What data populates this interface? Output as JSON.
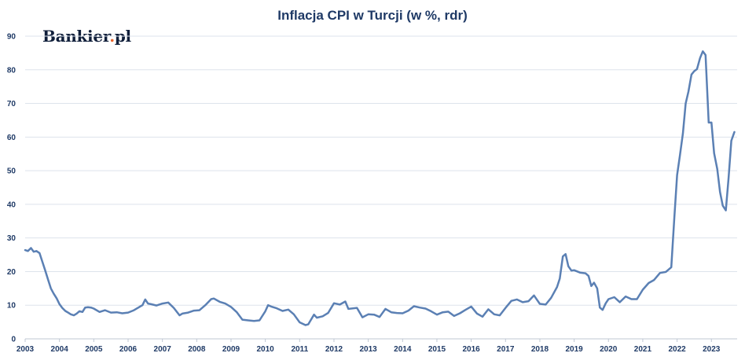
{
  "chart_data": {
    "type": "line",
    "title": "Inflacja CPI w Turcji (w %, rdr)",
    "xlabel": "",
    "ylabel": "",
    "xlim": [
      2003.0,
      2023.75
    ],
    "ylim": [
      0,
      90
    ],
    "yticks": [
      0,
      10,
      20,
      30,
      40,
      50,
      60,
      70,
      80,
      90
    ],
    "xticks": [
      "2003",
      "2004",
      "2005",
      "2006",
      "2007",
      "2008",
      "2009",
      "2010",
      "2011",
      "2012",
      "2013",
      "2014",
      "2015",
      "2016",
      "2017",
      "2018",
      "2019",
      "2020",
      "2021",
      "2022",
      "2023"
    ],
    "grid": true,
    "line_color": "#5b80b4",
    "series": [
      {
        "name": "",
        "x": [
          2003.0,
          2003.08,
          2003.17,
          2003.25,
          2003.33,
          2003.42,
          2003.5,
          2003.58,
          2003.67,
          2003.75,
          2003.83,
          2003.92,
          2004.0,
          2004.08,
          2004.17,
          2004.25,
          2004.33,
          2004.42,
          2004.5,
          2004.58,
          2004.67,
          2004.75,
          2004.83,
          2004.92,
          2005.0,
          2005.17,
          2005.33,
          2005.5,
          2005.67,
          2005.83,
          2006.0,
          2006.17,
          2006.33,
          2006.42,
          2006.5,
          2006.58,
          2006.67,
          2006.83,
          2007.0,
          2007.17,
          2007.33,
          2007.5,
          2007.58,
          2007.75,
          2007.92,
          2008.08,
          2008.25,
          2008.42,
          2008.5,
          2008.67,
          2008.83,
          2009.0,
          2009.17,
          2009.33,
          2009.5,
          2009.67,
          2009.83,
          2010.0,
          2010.08,
          2010.17,
          2010.33,
          2010.5,
          2010.67,
          2010.83,
          2011.0,
          2011.17,
          2011.25,
          2011.42,
          2011.5,
          2011.67,
          2011.83,
          2012.0,
          2012.17,
          2012.33,
          2012.42,
          2012.5,
          2012.67,
          2012.83,
          2013.0,
          2013.17,
          2013.33,
          2013.5,
          2013.67,
          2013.83,
          2014.0,
          2014.17,
          2014.33,
          2014.5,
          2014.67,
          2014.83,
          2015.0,
          2015.17,
          2015.33,
          2015.5,
          2015.67,
          2015.83,
          2016.0,
          2016.17,
          2016.33,
          2016.5,
          2016.67,
          2016.83,
          2017.0,
          2017.17,
          2017.33,
          2017.5,
          2017.67,
          2017.83,
          2018.0,
          2018.17,
          2018.33,
          2018.5,
          2018.58,
          2018.67,
          2018.75,
          2018.83,
          2018.92,
          2019.0,
          2019.17,
          2019.33,
          2019.42,
          2019.5,
          2019.58,
          2019.67,
          2019.75,
          2019.83,
          2019.92,
          2020.0,
          2020.17,
          2020.33,
          2020.5,
          2020.67,
          2020.83,
          2021.0,
          2021.17,
          2021.33,
          2021.5,
          2021.67,
          2021.83,
          2021.92,
          2022.0,
          2022.08,
          2022.17,
          2022.25,
          2022.33,
          2022.42,
          2022.5,
          2022.58,
          2022.67,
          2022.75,
          2022.83,
          2022.92,
          2023.0,
          2023.08,
          2023.17,
          2023.25,
          2023.33,
          2023.42,
          2023.5,
          2023.58,
          2023.67
        ],
        "values": [
          26.4,
          26.1,
          27.0,
          25.9,
          26.1,
          25.5,
          23.0,
          20.5,
          17.5,
          15.0,
          13.5,
          12.0,
          10.3,
          9.2,
          8.3,
          7.8,
          7.3,
          7.0,
          7.5,
          8.2,
          8.0,
          9.3,
          9.4,
          9.3,
          9.0,
          8.0,
          8.5,
          7.8,
          7.9,
          7.6,
          7.8,
          8.5,
          9.5,
          10.0,
          11.7,
          10.5,
          10.3,
          9.9,
          10.5,
          10.8,
          9.2,
          7.0,
          7.5,
          7.8,
          8.4,
          8.5,
          10.0,
          11.8,
          12.0,
          11.0,
          10.5,
          9.5,
          7.9,
          5.7,
          5.5,
          5.3,
          5.5,
          8.2,
          10.0,
          9.6,
          9.1,
          8.3,
          8.7,
          7.3,
          4.9,
          4.1,
          4.3,
          7.2,
          6.3,
          6.7,
          7.7,
          10.6,
          10.2,
          11.1,
          8.9,
          9.0,
          9.2,
          6.4,
          7.3,
          7.2,
          6.5,
          8.9,
          7.9,
          7.7,
          7.6,
          8.4,
          9.7,
          9.3,
          9.0,
          8.2,
          7.2,
          7.9,
          8.1,
          6.8,
          7.6,
          8.6,
          9.6,
          7.5,
          6.6,
          8.8,
          7.3,
          7.0,
          9.2,
          11.3,
          11.7,
          10.9,
          11.2,
          12.9,
          10.4,
          10.2,
          12.2,
          15.4,
          17.9,
          24.5,
          25.2,
          21.6,
          20.3,
          20.4,
          19.7,
          19.5,
          18.7,
          15.7,
          16.7,
          15.0,
          9.3,
          8.6,
          10.6,
          11.8,
          12.4,
          10.9,
          12.6,
          11.8,
          11.8,
          14.6,
          16.6,
          17.5,
          19.6,
          19.9,
          21.3,
          36.1,
          48.7,
          54.4,
          61.1,
          70.0,
          73.5,
          78.6,
          79.6,
          80.2,
          83.5,
          85.5,
          84.4,
          64.3,
          64.3,
          55.2,
          50.5,
          43.7,
          39.6,
          38.2,
          47.8,
          58.9,
          61.5
        ]
      }
    ]
  },
  "brand": {
    "name": "Bankier",
    "dot": ".",
    "suffix": "pl",
    "dot_color": "#e8652f"
  }
}
